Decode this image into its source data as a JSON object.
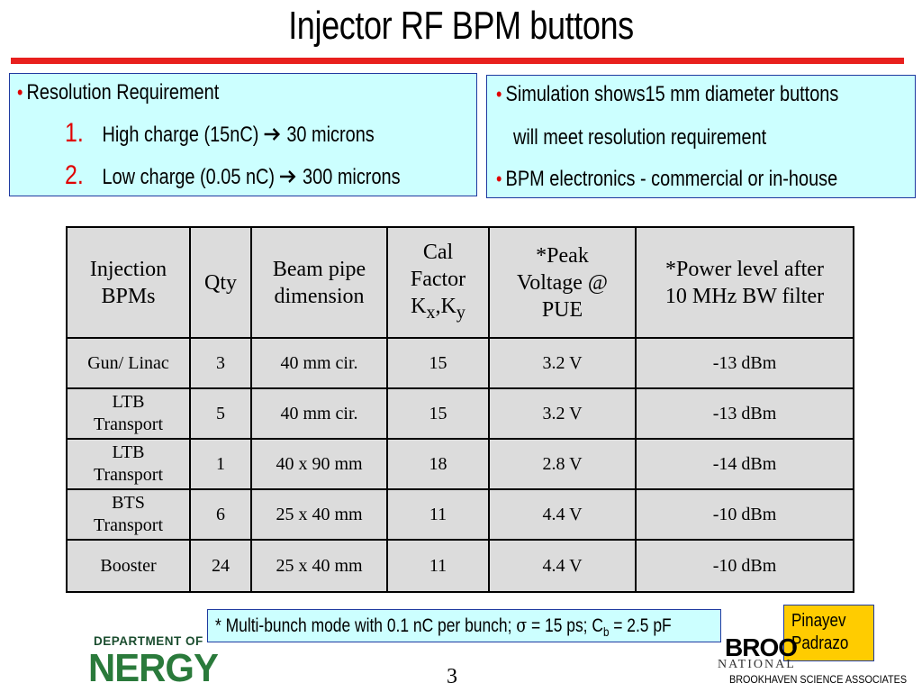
{
  "title": "Injector RF BPM buttons",
  "left_box": {
    "item1": "Resolution Requirement",
    "sub": [
      {
        "num": "1.",
        "text": "High charge (15nC)",
        "result": "30 microns"
      },
      {
        "num": "2.",
        "text": "Low charge (0.05 nC)",
        "result": "300 microns"
      }
    ]
  },
  "right_box": {
    "item1_line1": "Simulation shows15 mm diameter buttons",
    "item1_line2": "will meet resolution requirement",
    "item2": "BPM electronics - commercial or in-house"
  },
  "table": {
    "headers": {
      "col1": [
        "Injection",
        "BPMs"
      ],
      "col2": "Qty",
      "col3": [
        "Beam pipe",
        "dimension"
      ],
      "col4": [
        "Cal",
        "Factor",
        "K",
        "x",
        ",K",
        "y"
      ],
      "col5": [
        "*Peak",
        "Voltage @",
        "PUE"
      ],
      "col6": [
        "*Power level after",
        "10 MHz BW filter"
      ]
    },
    "rows": [
      {
        "bpm": [
          "Gun/ Linac"
        ],
        "qty": "3",
        "pipe": "40 mm cir.",
        "cal": "15",
        "voltage": "3.2 V",
        "power": "-13 dBm"
      },
      {
        "bpm": [
          "LTB",
          "Transport"
        ],
        "qty": "5",
        "pipe": "40 mm cir.",
        "cal": "15",
        "voltage": "3.2 V",
        "power": "-13 dBm"
      },
      {
        "bpm": [
          "LTB",
          "Transport"
        ],
        "qty": "1",
        "pipe": "40 x 90 mm",
        "cal": "18",
        "voltage": "2.8 V",
        "power": "-14 dBm"
      },
      {
        "bpm": [
          "BTS",
          "Transport"
        ],
        "qty": "6",
        "pipe": "25 x 40 mm",
        "cal": "11",
        "voltage": "4.4 V",
        "power": "-10 dBm"
      },
      {
        "bpm": [
          "Booster"
        ],
        "qty": "24",
        "pipe": "25 x 40 mm",
        "cal": "11",
        "voltage": "4.4 V",
        "power": "-10 dBm"
      }
    ]
  },
  "footnote": {
    "part1": "* Multi-bunch mode with 0.1 nC per bunch; ",
    "sigma": "σ",
    "part2": " = 15 ps; C",
    "sub": "b",
    "part3": " = 2.5 pF"
  },
  "authors": [
    "Pinayev",
    "Padrazo"
  ],
  "page_number": "3",
  "logos": {
    "doe_top": "DEPARTMENT OF",
    "doe_main": "NERGY",
    "bnl_main": "BROO",
    "bnl_national": "NATIONAL",
    "bnl_assoc": "BROOKHAVEN SCIENCE ASSOCIATES"
  },
  "colors": {
    "accent_red": "#e8201e",
    "box_fill": "#ccffff",
    "box_border": "#1f3aa0",
    "table_fill": "#dcdcdc",
    "author_fill": "#ffcc00",
    "doe_green": "#2a7a3b"
  }
}
